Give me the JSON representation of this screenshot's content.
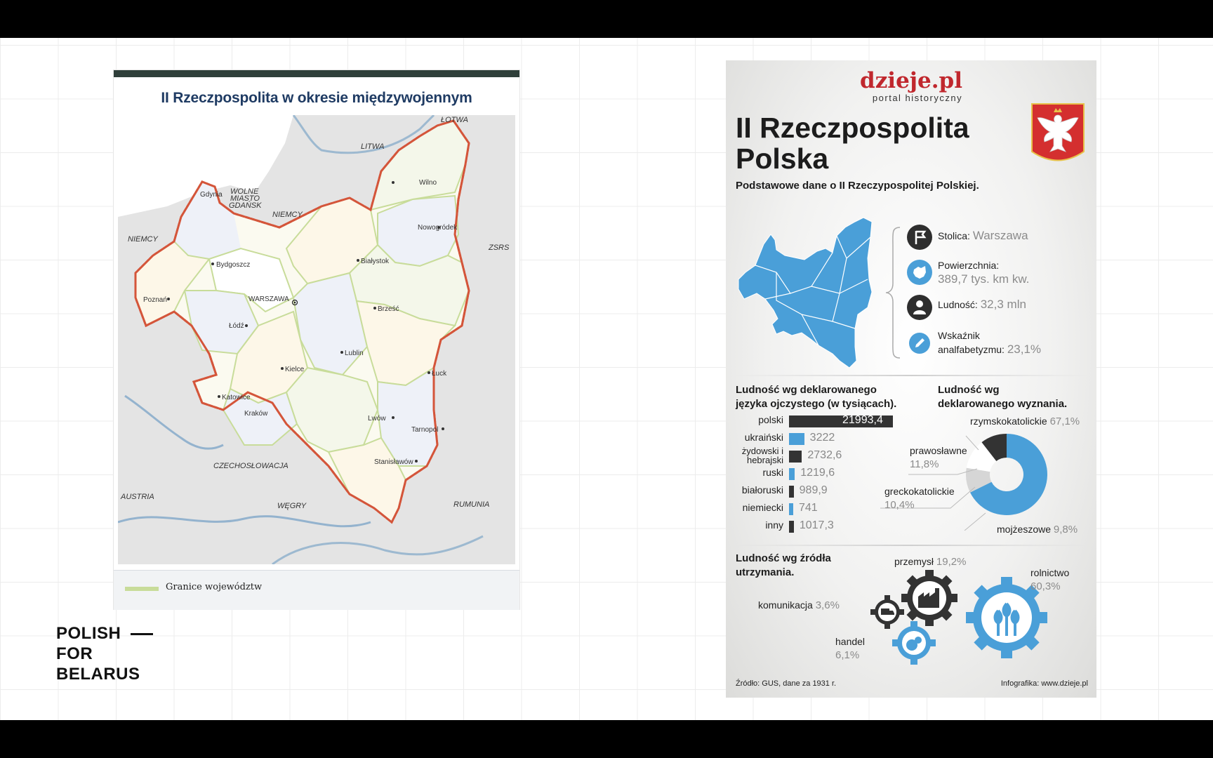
{
  "brand": {
    "line1": "POLISH",
    "line2": "FOR",
    "line3": "BELARUS"
  },
  "map": {
    "title": "II Rzeczpospolita w okresie międzywojennym",
    "legend_label": "Granice województw",
    "countries": [
      "ŁOTWA",
      "LITWA",
      "NIEMCY",
      "NIEMCY",
      "ZSRS",
      "CZECHOSŁOWACJA",
      "AUSTRIA",
      "WĘGRY",
      "RUMUNIA"
    ],
    "free_city": [
      "WOLNE",
      "MIASTO",
      "GDAŃSK"
    ],
    "capital": "WARSZAWA",
    "cities": [
      "Gdynia",
      "Wilno",
      "Nowogródek",
      "Bydgoszcz",
      "Białystok",
      "Poznań",
      "Brześć",
      "Łódź",
      "Lublin",
      "Kielce",
      "Łuck",
      "Katowice",
      "Kraków",
      "Lwów",
      "Tarnopol",
      "Stanisławów"
    ],
    "colors": {
      "border": "#d4553a",
      "water": "#7fa6c8",
      "land": "#e4e4e4"
    }
  },
  "info": {
    "logo": "dzieje.pl",
    "logo_sub": "portal historyczny",
    "title_line1": "II Rzeczpospolita",
    "title_line2": "Polska",
    "subtitle": "Podstawowe dane o II Rzeczypospolitej Polskiej.",
    "facts": [
      {
        "icon": "flag-icon",
        "label": "Stolica:",
        "value": "Warszawa"
      },
      {
        "icon": "map-icon",
        "label": "Powierzchnia:",
        "value": "389,7 tys. km kw."
      },
      {
        "icon": "person-icon",
        "label": "Ludność:",
        "value": "32,3 mln"
      },
      {
        "icon": "pencil-icon",
        "label": "Wskaźnik",
        "label2": "analfabetyzmu:",
        "value": "23,1%"
      }
    ],
    "language_title_1": "Ludność wg deklarowanego",
    "language_title_2": "języka ojczystego (w tysiącach).",
    "religion_title_1": "Ludność wg",
    "religion_title_2": "deklarowanego wyznania.",
    "livelihood_title_1": "Ludność wg źródła",
    "livelihood_title_2": "utrzymania.",
    "source": "Źródło: GUS, dane za 1931 r.",
    "credit": "Infografika: www.dzieje.pl",
    "colors": {
      "accent": "#4a9fd8",
      "dark": "#333333",
      "logo": "#c0272d"
    }
  },
  "chart_data": [
    {
      "type": "bar",
      "title": "Ludność wg deklarowanego języka ojczystego (w tysiącach).",
      "categories": [
        "polski",
        "ukraiński",
        "żydowski i hebrajski",
        "ruski",
        "białoruski",
        "niemiecki",
        "inny"
      ],
      "values": [
        21993.4,
        3222,
        2732.6,
        1219.6,
        989.9,
        741,
        1017.3
      ],
      "labels": [
        "21993,4",
        "3222",
        "2732,6",
        "1219,6",
        "989,9",
        "741",
        "1017,3"
      ],
      "colors": [
        "#333333",
        "#4a9fd8",
        "#333333",
        "#4a9fd8",
        "#333333",
        "#4a9fd8",
        "#333333"
      ]
    },
    {
      "type": "pie",
      "title": "Ludność wg deklarowanego wyznania.",
      "categories": [
        "rzymskokatolickie",
        "prawosławne",
        "greckokatolickie",
        "mojżeszowe"
      ],
      "values": [
        67.1,
        11.8,
        10.4,
        9.8
      ],
      "labels": [
        "67,1%",
        "11,8%",
        "10,4%",
        "9,8%"
      ],
      "colors": [
        "#4a9fd8",
        "#ffffff",
        "#333333",
        "#d6d6d6"
      ]
    },
    {
      "type": "table",
      "title": "Ludność wg źródła utrzymania.",
      "categories": [
        "przemysł",
        "rolnictwo",
        "komunikacja",
        "handel"
      ],
      "values": [
        19.2,
        60.3,
        3.6,
        6.1
      ],
      "labels": [
        "19,2%",
        "60,3%",
        "3,6%",
        "6,1%"
      ]
    }
  ]
}
